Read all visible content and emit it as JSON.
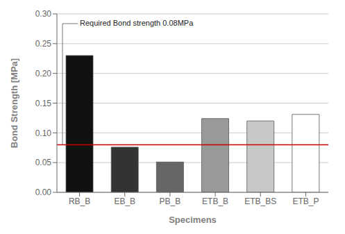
{
  "chart_data": {
    "type": "bar",
    "categories": [
      "RB_B",
      "EB_B",
      "PB_B",
      "ETB_B",
      "ETB_BS",
      "ETB_P"
    ],
    "values": [
      0.23,
      0.076,
      0.051,
      0.124,
      0.12,
      0.131
    ],
    "colors": [
      "#111111",
      "#333333",
      "#666666",
      "#999999",
      "#c8c8c8",
      "#ffffff"
    ],
    "x_label": "Specimens",
    "y_label": "Bond Strength [MPa]",
    "ylim": [
      0.0,
      0.3
    ],
    "yticks": [
      {
        "value": 0.0,
        "label": "0.00"
      },
      0.05,
      {
        "value": 0.1,
        "label": "0.10"
      },
      0.15,
      {
        "value": 0.2,
        "label": "0.20"
      },
      0.25,
      {
        "value": 0.3,
        "label": "0.30"
      }
    ],
    "grid": true,
    "annotations": [
      {
        "text": "Required Bond strength 0.08MPa",
        "y": 0.08,
        "color": "#cc0000"
      }
    ]
  }
}
